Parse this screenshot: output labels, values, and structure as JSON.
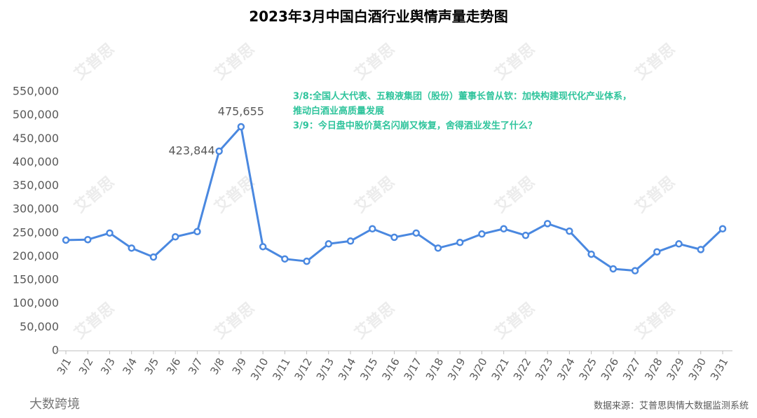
{
  "chart_data": {
    "type": "line",
    "title": "2023年3月中国白酒行业舆情声量走势图",
    "categories": [
      "3/1",
      "3/2",
      "3/3",
      "3/4",
      "3/5",
      "3/6",
      "3/7",
      "3/8",
      "3/9",
      "3/10",
      "3/11",
      "3/12",
      "3/13",
      "3/14",
      "3/15",
      "3/16",
      "3/17",
      "3/18",
      "3/19",
      "3/20",
      "3/21",
      "3/22",
      "3/23",
      "3/24",
      "3/25",
      "3/26",
      "3/27",
      "3/28",
      "3/29",
      "3/30",
      "3/31"
    ],
    "series": [
      {
        "color": "#4a88e0",
        "values": [
          235000,
          236000,
          250000,
          218000,
          199000,
          242000,
          253000,
          423844,
          475655,
          221000,
          195000,
          190000,
          227000,
          233000,
          259000,
          241000,
          250000,
          218000,
          230000,
          248000,
          259000,
          245000,
          270000,
          254000,
          205000,
          174000,
          170000,
          210000,
          227000,
          215000,
          259000
        ],
        "value_labels": [
          null,
          null,
          null,
          null,
          null,
          null,
          null,
          "423,844",
          "475,655",
          null,
          null,
          null,
          null,
          null,
          null,
          null,
          null,
          null,
          null,
          null,
          null,
          null,
          null,
          null,
          null,
          null,
          null,
          null,
          null,
          null,
          null
        ]
      }
    ],
    "ylim": [
      0,
      550000
    ],
    "yticks": [
      0,
      {
        "value": 50000,
        "label": "50,000"
      },
      {
        "value": 100000,
        "label": "100,000"
      },
      {
        "value": 150000,
        "label": "150,000"
      },
      {
        "value": 200000,
        "label": "200,000"
      },
      {
        "value": 250000,
        "label": "250,000"
      },
      {
        "value": 300000,
        "label": "300,000"
      },
      {
        "value": 350000,
        "label": "350,000"
      },
      {
        "value": 400000,
        "label": "400,000"
      },
      {
        "value": 450000,
        "label": "450,000"
      },
      {
        "value": 500000,
        "label": "500,000"
      },
      {
        "value": 550000,
        "label": "550,000"
      }
    ],
    "annotations": [
      "3/8:全国人大代表、五粮液集团（股份）董事长曾从钦：加快构建现代化产业体系，",
      "推动白酒业高质量发展",
      "3/9：今日盘中股价莫名闪崩又恢复，舍得酒业发生了什么？"
    ],
    "source": "数据来源：艾普思舆情大数据监测系统",
    "logo": "大数跨境",
    "watermark": "艾普思"
  }
}
